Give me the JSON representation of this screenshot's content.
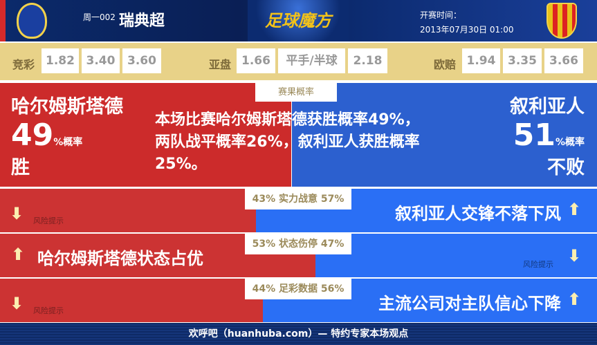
{
  "header": {
    "league_code": "周一002",
    "league": "瑞典超",
    "brand": "足球魔方",
    "time_label": "开赛时间：",
    "time": "2013年07月30日 01:00",
    "home_logo": "HBK club crest",
    "away_logo": "Syrianska FC crest"
  },
  "odds": {
    "jingcai": {
      "label": "竞彩",
      "values": [
        "1.82",
        "3.40",
        "3.60"
      ]
    },
    "yapan": {
      "label": "亚盘",
      "values": [
        "1.66",
        "平手/半球",
        "2.18"
      ]
    },
    "ouzhou": {
      "label": "欧赔",
      "values": [
        "1.94",
        "3.35",
        "3.66"
      ]
    }
  },
  "result": {
    "label": "赛果概率",
    "home_name": "哈尔姆斯塔德",
    "home_pct": "49",
    "pct_unit": "%概率",
    "home_result": "胜",
    "away_name": "叙利亚人",
    "away_pct": "51",
    "away_result": "不败",
    "summary": "本场比赛哈尔姆斯塔德获胜概率49%，两队战平概率26%，叙利亚人获胜概率25%。",
    "home_share": 49
  },
  "rows": [
    {
      "label": "43% 实力战意 57%",
      "home_pct": 43,
      "home_arrow": "down",
      "away_arrow": "up",
      "risk": "风险提示",
      "text": "叙利亚人交锋不落下风"
    },
    {
      "label": "53% 状态伤停 47%",
      "home_pct": 53,
      "home_arrow": "up",
      "away_arrow": "down",
      "risk": "风险提示",
      "text": "哈尔姆斯塔德状态占优"
    },
    {
      "label": "44% 足彩数据 56%",
      "home_pct": 44,
      "home_arrow": "down",
      "away_arrow": "up",
      "risk": "风险提示",
      "text": "主流公司对主队信心下降"
    }
  ],
  "footer": "欢呼吧（huanhuba.com）— 特约专家本场观点",
  "colors": {
    "red": "#cc2b2b",
    "blue": "#2c60cf",
    "gold": "#e8d288",
    "arrow": "#fbeeb0"
  }
}
